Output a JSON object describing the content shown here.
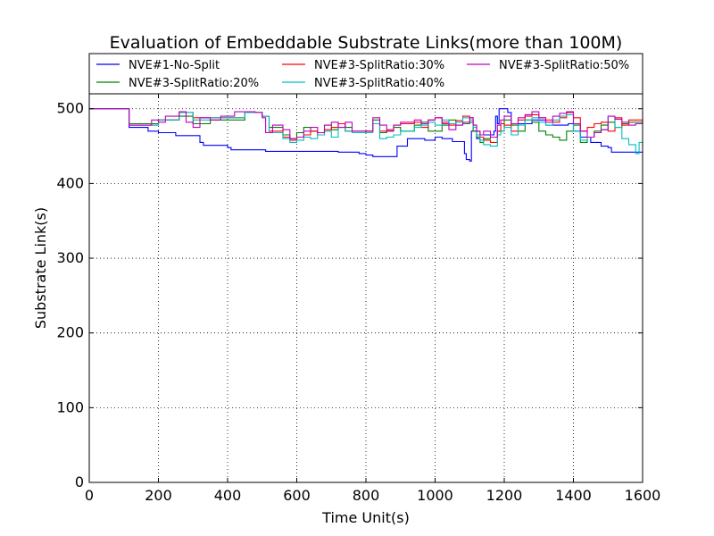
{
  "chart_data": {
    "type": "line",
    "title": "Evaluation of Embeddable Substrate Links(more than 100M)",
    "xlabel": "Time Unit(s)",
    "ylabel": "Substrate Link(s)",
    "xlim": [
      0,
      1600
    ],
    "ylim": [
      0,
      520
    ],
    "xticks": [
      "0",
      "200",
      "400",
      "600",
      "800",
      "1000",
      "1200",
      "1400",
      "1600"
    ],
    "yticks": [
      "0",
      "100",
      "200",
      "300",
      "400",
      "500"
    ],
    "grid": true,
    "legend_position": "top, inside",
    "series": [
      {
        "name": "NVE#1-No-Split",
        "color": "#0000ff",
        "points": [
          [
            0,
            500
          ],
          [
            110,
            500
          ],
          [
            115,
            475
          ],
          [
            170,
            470
          ],
          [
            200,
            468
          ],
          [
            250,
            464
          ],
          [
            320,
            455
          ],
          [
            330,
            451
          ],
          [
            400,
            448
          ],
          [
            410,
            445
          ],
          [
            500,
            445
          ],
          [
            510,
            443
          ],
          [
            700,
            443
          ],
          [
            720,
            442
          ],
          [
            780,
            440
          ],
          [
            800,
            438
          ],
          [
            820,
            436
          ],
          [
            880,
            436
          ],
          [
            890,
            450
          ],
          [
            920,
            460
          ],
          [
            960,
            460
          ],
          [
            970,
            458
          ],
          [
            1000,
            462
          ],
          [
            1020,
            460
          ],
          [
            1050,
            456
          ],
          [
            1080,
            456
          ],
          [
            1085,
            440
          ],
          [
            1090,
            432
          ],
          [
            1100,
            430
          ],
          [
            1105,
            470
          ],
          [
            1115,
            470
          ],
          [
            1120,
            460
          ],
          [
            1130,
            465
          ],
          [
            1160,
            465
          ],
          [
            1170,
            470
          ],
          [
            1175,
            490
          ],
          [
            1180,
            480
          ],
          [
            1185,
            500
          ],
          [
            1200,
            500
          ],
          [
            1210,
            495
          ],
          [
            1220,
            480
          ],
          [
            1260,
            480
          ],
          [
            1280,
            485
          ],
          [
            1300,
            485
          ],
          [
            1320,
            478
          ],
          [
            1380,
            478
          ],
          [
            1385,
            480
          ],
          [
            1400,
            470
          ],
          [
            1420,
            462
          ],
          [
            1440,
            462
          ],
          [
            1450,
            455
          ],
          [
            1480,
            450
          ],
          [
            1500,
            448
          ],
          [
            1510,
            442
          ],
          [
            1540,
            442
          ],
          [
            1600,
            442
          ]
        ]
      },
      {
        "name": "NVE#3-SplitRatio:20%",
        "color": "#008000",
        "points": [
          [
            0,
            500
          ],
          [
            110,
            500
          ],
          [
            115,
            480
          ],
          [
            200,
            485
          ],
          [
            260,
            490
          ],
          [
            300,
            480
          ],
          [
            350,
            485
          ],
          [
            450,
            495
          ],
          [
            500,
            490
          ],
          [
            520,
            475
          ],
          [
            560,
            465
          ],
          [
            580,
            460
          ],
          [
            600,
            468
          ],
          [
            620,
            475
          ],
          [
            640,
            470
          ],
          [
            660,
            468
          ],
          [
            680,
            478
          ],
          [
            700,
            472
          ],
          [
            720,
            480
          ],
          [
            740,
            475
          ],
          [
            760,
            470
          ],
          [
            800,
            470
          ],
          [
            820,
            485
          ],
          [
            840,
            468
          ],
          [
            860,
            470
          ],
          [
            880,
            475
          ],
          [
            900,
            470
          ],
          [
            940,
            478
          ],
          [
            960,
            482
          ],
          [
            980,
            470
          ],
          [
            1000,
            470
          ],
          [
            1020,
            478
          ],
          [
            1040,
            485
          ],
          [
            1060,
            478
          ],
          [
            1080,
            480
          ],
          [
            1100,
            482
          ],
          [
            1110,
            470
          ],
          [
            1120,
            462
          ],
          [
            1130,
            455
          ],
          [
            1140,
            460
          ],
          [
            1160,
            462
          ],
          [
            1180,
            470
          ],
          [
            1190,
            470
          ],
          [
            1200,
            485
          ],
          [
            1220,
            478
          ],
          [
            1240,
            470
          ],
          [
            1260,
            485
          ],
          [
            1280,
            482
          ],
          [
            1300,
            470
          ],
          [
            1320,
            465
          ],
          [
            1340,
            462
          ],
          [
            1360,
            458
          ],
          [
            1380,
            470
          ],
          [
            1400,
            478
          ],
          [
            1420,
            455
          ],
          [
            1440,
            462
          ],
          [
            1460,
            470
          ],
          [
            1480,
            478
          ],
          [
            1500,
            482
          ],
          [
            1520,
            475
          ],
          [
            1540,
            480
          ],
          [
            1560,
            482
          ],
          [
            1600,
            480
          ]
        ]
      },
      {
        "name": "NVE#3-SplitRatio:30%",
        "color": "#ff0000",
        "points": [
          [
            0,
            500
          ],
          [
            110,
            500
          ],
          [
            115,
            478
          ],
          [
            200,
            485
          ],
          [
            260,
            495
          ],
          [
            300,
            488
          ],
          [
            350,
            488
          ],
          [
            450,
            495
          ],
          [
            500,
            490
          ],
          [
            520,
            470
          ],
          [
            560,
            462
          ],
          [
            580,
            458
          ],
          [
            600,
            462
          ],
          [
            620,
            465
          ],
          [
            640,
            470
          ],
          [
            660,
            465
          ],
          [
            680,
            472
          ],
          [
            700,
            475
          ],
          [
            720,
            480
          ],
          [
            740,
            470
          ],
          [
            760,
            468
          ],
          [
            800,
            470
          ],
          [
            820,
            480
          ],
          [
            840,
            470
          ],
          [
            860,
            472
          ],
          [
            880,
            478
          ],
          [
            900,
            480
          ],
          [
            940,
            482
          ],
          [
            960,
            475
          ],
          [
            980,
            485
          ],
          [
            1000,
            488
          ],
          [
            1020,
            482
          ],
          [
            1040,
            478
          ],
          [
            1060,
            484
          ],
          [
            1080,
            490
          ],
          [
            1100,
            488
          ],
          [
            1110,
            478
          ],
          [
            1120,
            470
          ],
          [
            1130,
            462
          ],
          [
            1140,
            458
          ],
          [
            1160,
            455
          ],
          [
            1180,
            470
          ],
          [
            1190,
            480
          ],
          [
            1200,
            478
          ],
          [
            1220,
            470
          ],
          [
            1240,
            485
          ],
          [
            1260,
            490
          ],
          [
            1280,
            492
          ],
          [
            1300,
            488
          ],
          [
            1320,
            485
          ],
          [
            1340,
            482
          ],
          [
            1360,
            488
          ],
          [
            1380,
            495
          ],
          [
            1400,
            488
          ],
          [
            1420,
            470
          ],
          [
            1440,
            475
          ],
          [
            1460,
            480
          ],
          [
            1480,
            482
          ],
          [
            1500,
            470
          ],
          [
            1520,
            488
          ],
          [
            1540,
            478
          ],
          [
            1560,
            485
          ],
          [
            1600,
            482
          ]
        ]
      },
      {
        "name": "NVE#3-SplitRatio:40%",
        "color": "#00bfbf",
        "points": [
          [
            0,
            500
          ],
          [
            110,
            500
          ],
          [
            115,
            478
          ],
          [
            200,
            485
          ],
          [
            260,
            495
          ],
          [
            300,
            485
          ],
          [
            350,
            488
          ],
          [
            450,
            495
          ],
          [
            500,
            490
          ],
          [
            520,
            468
          ],
          [
            560,
            460
          ],
          [
            580,
            455
          ],
          [
            600,
            458
          ],
          [
            620,
            462
          ],
          [
            640,
            460
          ],
          [
            660,
            465
          ],
          [
            680,
            470
          ],
          [
            700,
            462
          ],
          [
            720,
            475
          ],
          [
            740,
            470
          ],
          [
            760,
            468
          ],
          [
            800,
            468
          ],
          [
            820,
            480
          ],
          [
            840,
            460
          ],
          [
            860,
            462
          ],
          [
            880,
            465
          ],
          [
            900,
            470
          ],
          [
            940,
            475
          ],
          [
            960,
            478
          ],
          [
            980,
            482
          ],
          [
            1000,
            478
          ],
          [
            1020,
            485
          ],
          [
            1040,
            480
          ],
          [
            1060,
            482
          ],
          [
            1080,
            488
          ],
          [
            1100,
            485
          ],
          [
            1110,
            475
          ],
          [
            1120,
            465
          ],
          [
            1130,
            458
          ],
          [
            1140,
            452
          ],
          [
            1160,
            450
          ],
          [
            1180,
            465
          ],
          [
            1190,
            470
          ],
          [
            1200,
            475
          ],
          [
            1220,
            465
          ],
          [
            1240,
            478
          ],
          [
            1260,
            485
          ],
          [
            1280,
            488
          ],
          [
            1300,
            482
          ],
          [
            1320,
            478
          ],
          [
            1340,
            485
          ],
          [
            1360,
            490
          ],
          [
            1380,
            492
          ],
          [
            1400,
            470
          ],
          [
            1420,
            458
          ],
          [
            1440,
            462
          ],
          [
            1460,
            468
          ],
          [
            1480,
            472
          ],
          [
            1500,
            490
          ],
          [
            1520,
            475
          ],
          [
            1540,
            460
          ],
          [
            1560,
            452
          ],
          [
            1580,
            440
          ],
          [
            1590,
            455
          ],
          [
            1600,
            455
          ]
        ]
      },
      {
        "name": "NVE#3-SplitRatio:50%",
        "color": "#bf00bf",
        "points": [
          [
            0,
            500
          ],
          [
            110,
            500
          ],
          [
            115,
            478
          ],
          [
            180,
            485
          ],
          [
            200,
            482
          ],
          [
            220,
            490
          ],
          [
            260,
            496
          ],
          [
            280,
            482
          ],
          [
            300,
            475
          ],
          [
            320,
            488
          ],
          [
            350,
            485
          ],
          [
            380,
            490
          ],
          [
            420,
            496
          ],
          [
            460,
            496
          ],
          [
            480,
            495
          ],
          [
            500,
            488
          ],
          [
            510,
            468
          ],
          [
            530,
            478
          ],
          [
            560,
            472
          ],
          [
            580,
            460
          ],
          [
            600,
            462
          ],
          [
            620,
            470
          ],
          [
            640,
            475
          ],
          [
            660,
            468
          ],
          [
            680,
            478
          ],
          [
            700,
            482
          ],
          [
            720,
            475
          ],
          [
            740,
            482
          ],
          [
            760,
            470
          ],
          [
            800,
            470
          ],
          [
            820,
            488
          ],
          [
            840,
            478
          ],
          [
            860,
            470
          ],
          [
            880,
            478
          ],
          [
            900,
            482
          ],
          [
            940,
            485
          ],
          [
            960,
            480
          ],
          [
            980,
            485
          ],
          [
            1000,
            488
          ],
          [
            1020,
            480
          ],
          [
            1040,
            472
          ],
          [
            1060,
            478
          ],
          [
            1080,
            482
          ],
          [
            1100,
            488
          ],
          [
            1110,
            478
          ],
          [
            1120,
            470
          ],
          [
            1130,
            465
          ],
          [
            1140,
            470
          ],
          [
            1160,
            462
          ],
          [
            1180,
            478
          ],
          [
            1190,
            485
          ],
          [
            1200,
            490
          ],
          [
            1220,
            480
          ],
          [
            1240,
            488
          ],
          [
            1260,
            492
          ],
          [
            1280,
            496
          ],
          [
            1300,
            488
          ],
          [
            1320,
            482
          ],
          [
            1340,
            490
          ],
          [
            1360,
            494
          ],
          [
            1380,
            496
          ],
          [
            1400,
            480
          ],
          [
            1420,
            470
          ],
          [
            1440,
            462
          ],
          [
            1460,
            468
          ],
          [
            1480,
            472
          ],
          [
            1500,
            490
          ],
          [
            1520,
            486
          ],
          [
            1540,
            482
          ],
          [
            1560,
            478
          ],
          [
            1580,
            480
          ],
          [
            1600,
            480
          ]
        ]
      }
    ]
  }
}
